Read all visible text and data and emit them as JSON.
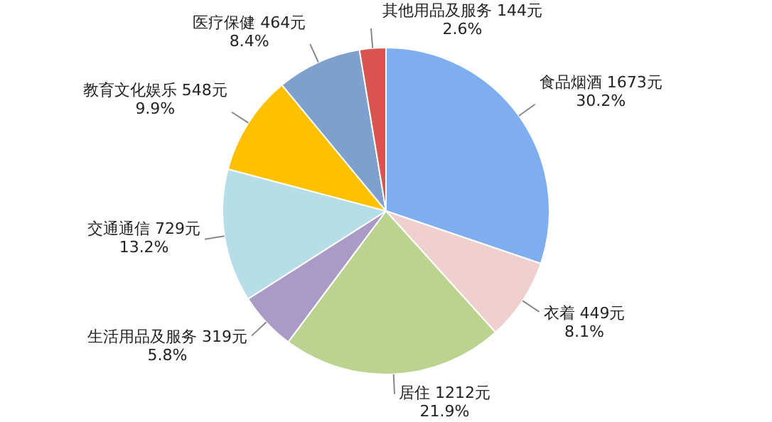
{
  "chart_data": {
    "type": "pie",
    "categories": [
      "食品烟酒",
      "衣着",
      "居住",
      "生活用品及服务",
      "交通通信",
      "教育文化娱乐",
      "医疗保健",
      "其他用品及服务"
    ],
    "values": [
      1673,
      449,
      1212,
      319,
      729,
      548,
      464,
      144
    ],
    "colors": [
      "#7eaef0",
      "#f0cfcf",
      "#bcd38f",
      "#a99ac6",
      "#b6dde8",
      "#ffc000",
      "#7f9fcc",
      "#d9534f"
    ],
    "value_labels": [
      "1673元\n30.2%",
      "449元\n8.1%",
      "1212元\n21.9%",
      "319元\n5.8%",
      "729元\n13.2%",
      "548元\n9.9%",
      "464元\n8.4%",
      "144元\n2.6%"
    ],
    "legend": false
  }
}
